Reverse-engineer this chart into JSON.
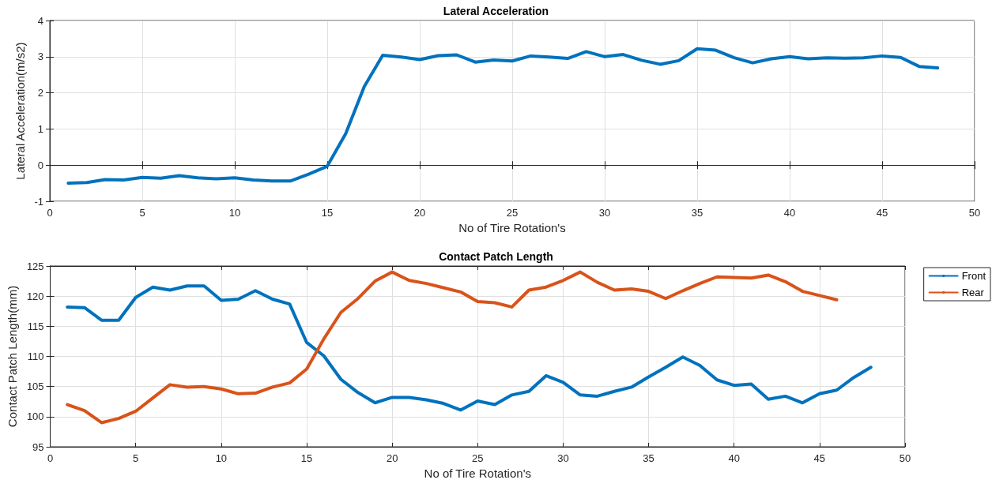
{
  "chart_data": [
    {
      "type": "line",
      "title": "Lateral Acceleration",
      "xlabel": "No of Tire Rotation's",
      "ylabel": "Lateral Acceleration(m/s2)",
      "x": [
        1,
        2,
        3,
        4,
        5,
        6,
        7,
        8,
        9,
        10,
        11,
        12,
        13,
        14,
        15,
        16,
        17,
        18,
        19,
        20,
        21,
        22,
        23,
        24,
        25,
        26,
        27,
        28,
        29,
        30,
        31,
        32,
        33,
        34,
        35,
        36,
        37,
        38,
        39,
        40,
        41,
        42,
        43,
        44,
        45,
        46,
        47,
        48
      ],
      "series": [
        {
          "color": "#0072bd",
          "values": [
            -0.5,
            -0.48,
            -0.4,
            -0.41,
            -0.34,
            -0.36,
            -0.29,
            -0.35,
            -0.38,
            -0.35,
            -0.41,
            -0.44,
            -0.44,
            -0.25,
            -0.03,
            0.87,
            2.17,
            3.04,
            2.99,
            2.92,
            3.03,
            3.05,
            2.85,
            2.91,
            2.88,
            3.02,
            2.99,
            2.95,
            3.14,
            3.0,
            3.06,
            2.9,
            2.79,
            2.89,
            3.22,
            3.18,
            2.97,
            2.83,
            2.94,
            3.0,
            2.94,
            2.97,
            2.96,
            2.97,
            3.02,
            2.98,
            2.73,
            2.69
          ]
        }
      ],
      "xlim": [
        0,
        50
      ],
      "xticks": [
        0,
        5,
        10,
        15,
        20,
        25,
        30,
        35,
        40,
        45,
        50
      ],
      "ylim": [
        -1,
        4
      ],
      "yticks": [
        -1,
        0,
        1,
        2,
        3,
        4
      ],
      "grid": true,
      "legend": false,
      "marker": "none",
      "line_style": "solid"
    },
    {
      "type": "line",
      "title": "Contact Patch Length",
      "xlabel": "No of Tire Rotation's",
      "ylabel": "Contact Patch Length(mm)",
      "x": [
        1,
        2,
        3,
        4,
        5,
        6,
        7,
        8,
        9,
        10,
        11,
        12,
        13,
        14,
        15,
        16,
        17,
        18,
        19,
        20,
        21,
        22,
        23,
        24,
        25,
        26,
        27,
        28,
        29,
        30,
        31,
        32,
        33,
        34,
        35,
        36,
        37,
        38,
        39,
        40,
        41,
        42,
        43,
        44,
        45,
        46,
        47,
        48
      ],
      "series": [
        {
          "name": "Front",
          "color": "#0072bd",
          "values": [
            118.2,
            118.1,
            116,
            116,
            119.8,
            121.5,
            121,
            121.7,
            121.7,
            119.3,
            119.5,
            120.9,
            119.5,
            118.7,
            112.3,
            110.1,
            106.2,
            104,
            102.3,
            103.2,
            103.2,
            102.8,
            102.2,
            101.1,
            102.6,
            102,
            103.6,
            104.2,
            106.8,
            105.7,
            103.6,
            103.4,
            104.2,
            104.9,
            106.6,
            108.2,
            109.9,
            108.5,
            106.1,
            105.2,
            105.4,
            102.9,
            103.4,
            102.3,
            103.8,
            104.4,
            106.5,
            108.2
          ]
        },
        {
          "name": "Rear",
          "color": "#d95319",
          "values": [
            102,
            101,
            99,
            99.7,
            100.9,
            103.1,
            105.3,
            104.9,
            105,
            104.6,
            103.8,
            103.9,
            104.9,
            105.6,
            107.9,
            112.9,
            117.3,
            119.6,
            122.5,
            124,
            122.6,
            122.1,
            121.4,
            120.7,
            119.1,
            118.9,
            118.2,
            121,
            121.5,
            122.6,
            124,
            122.3,
            121,
            121.2,
            120.8,
            119.6,
            120.9,
            122.1,
            123.2,
            123.1,
            123,
            123.5,
            122.4,
            120.8,
            120.1,
            119.4,
            null,
            null
          ]
        }
      ],
      "xlim": [
        0,
        50
      ],
      "xticks": [
        0,
        5,
        10,
        15,
        20,
        25,
        30,
        35,
        40,
        45,
        50
      ],
      "ylim": [
        95,
        125
      ],
      "yticks": [
        95,
        100,
        105,
        110,
        115,
        120,
        125
      ],
      "grid": true,
      "legend": "top right",
      "marker": "none",
      "line_style": "solid"
    }
  ]
}
